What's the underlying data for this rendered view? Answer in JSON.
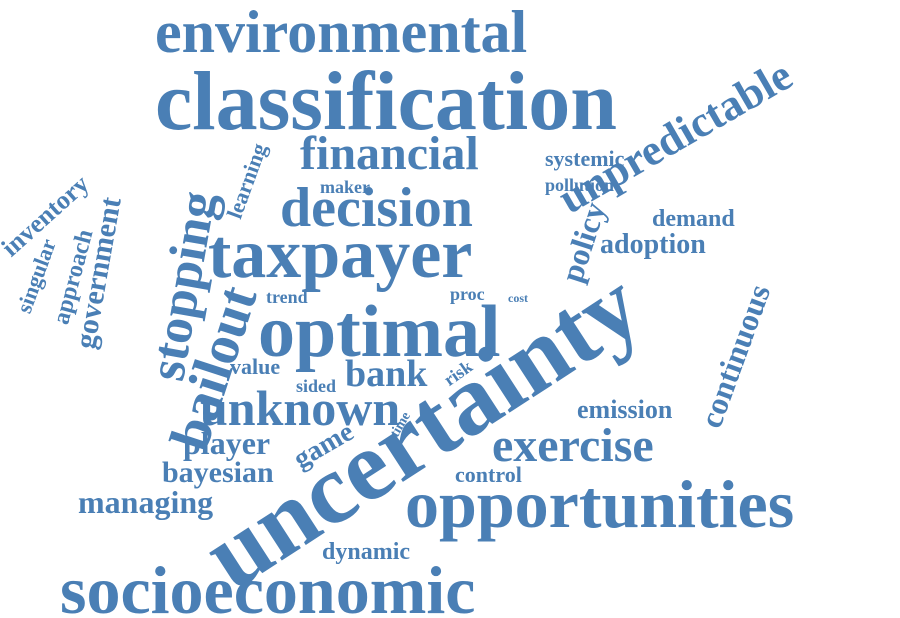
{
  "color": "#4a7fb5",
  "words": {
    "environmental": "environmental",
    "classification": "classification",
    "unpredictable": "unpredictable",
    "financial": "financial",
    "systemic": "systemic",
    "pollution": "pollution",
    "maker": "maker",
    "decision": "decision",
    "learning": "learning",
    "demand": "demand",
    "policy": "policy",
    "adoption": "adoption",
    "inventory": "inventory",
    "approach": "approach",
    "singular": "singular",
    "government": "government",
    "stopping": "stopping",
    "taxpayer": "taxpayer",
    "trend": "trend",
    "proc": "proc",
    "cost": "cost",
    "bailout": "bailout",
    "optimal": "optimal",
    "uncertainty": "uncertainty",
    "continuous": "continuous",
    "value": "value",
    "sided": "sided",
    "bank": "bank",
    "risk": "risk",
    "unknown": "unknown",
    "emission": "emission",
    "time": "time",
    "player": "player",
    "game": "game",
    "exercise": "exercise",
    "bayesian": "bayesian",
    "control": "control",
    "managing": "managing",
    "opportunities": "opportunities",
    "dynamic": "dynamic",
    "socioeconomic": "socioeconomic"
  }
}
